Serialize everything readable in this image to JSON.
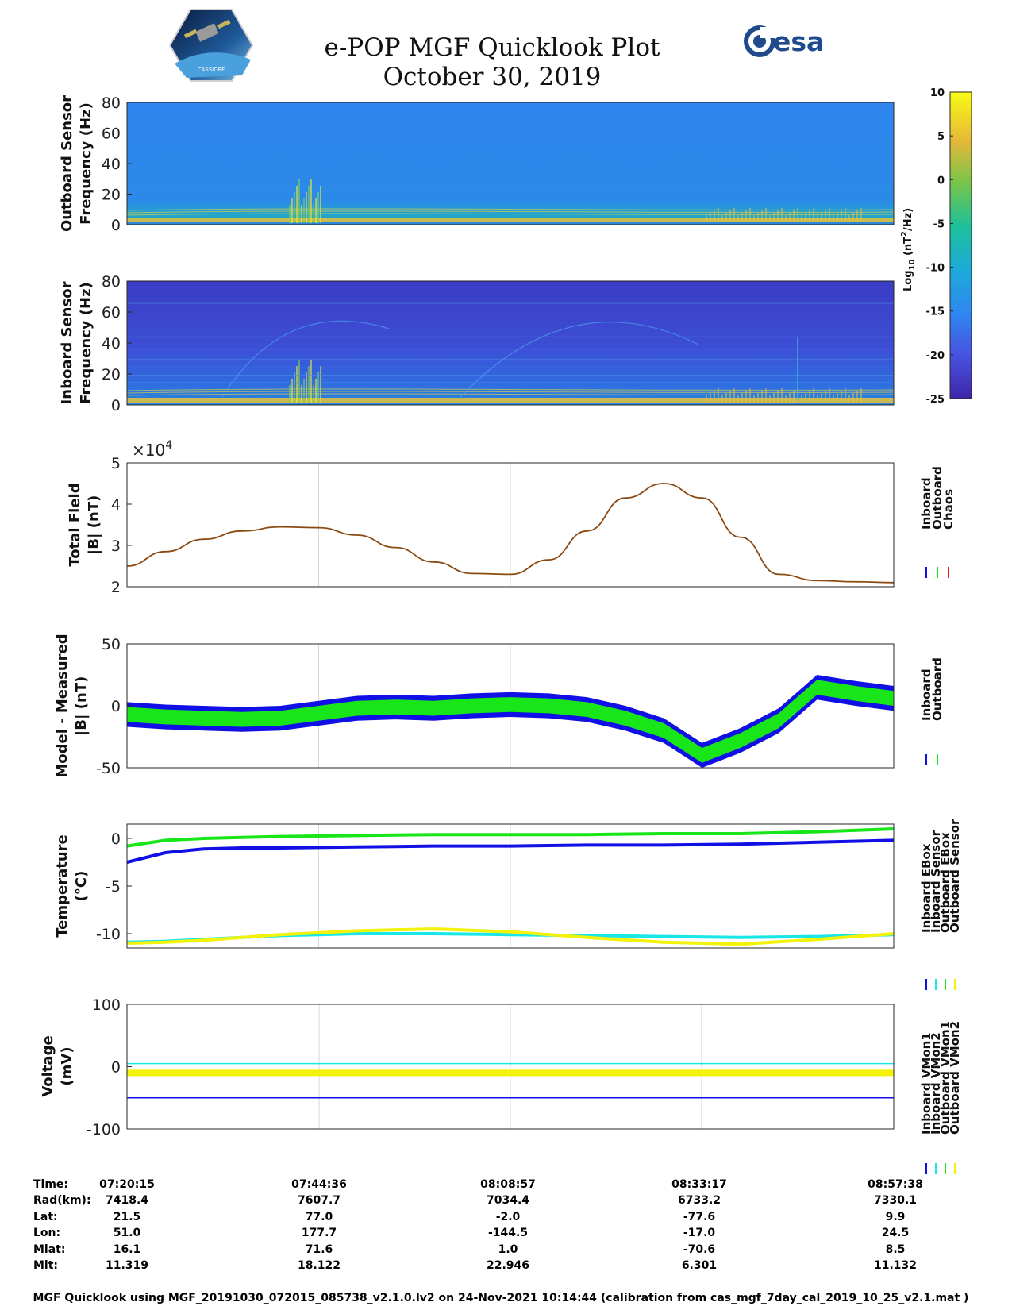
{
  "header": {
    "title": "e-POP MGF Quicklook Plot",
    "date": "October 30, 2019",
    "left_logo_text": "CASSIOPE",
    "right_logo_text": "esa"
  },
  "colors": {
    "inboard": "#1010e6",
    "outboard": "#19e619",
    "chaos": "#e61919",
    "ebox_cyan": "#19e6e6",
    "yellow": "#f2f20a",
    "chaos_line": "#8a4a12"
  },
  "chart_data": [
    {
      "id": "outboard_spectrogram",
      "type": "heatmap",
      "ylabel": [
        "Outboard Sensor",
        "Frequency (Hz)"
      ],
      "ylim": [
        0,
        80
      ],
      "yticks": [
        "80",
        "60",
        "40",
        "20",
        "0"
      ]
    },
    {
      "id": "inboard_spectrogram",
      "type": "heatmap",
      "ylabel": [
        "Inboard Sensor",
        "Frequency (Hz)"
      ],
      "ylim": [
        0,
        80
      ],
      "yticks": [
        "80",
        "60",
        "40",
        "20",
        "0"
      ]
    },
    {
      "id": "colorbar",
      "type": "heatmap",
      "label": "Log10 (nT2/Hz)",
      "label_parts": {
        "pre": "Log",
        "sub": "10",
        "mid": " (nT",
        "sup": "2",
        "post": "/Hz)"
      },
      "range": [
        -25,
        10
      ],
      "ticks": [
        "10",
        "5",
        "0",
        "-5",
        "-10",
        "-15",
        "-20",
        "-25"
      ]
    },
    {
      "id": "total_field",
      "type": "line",
      "ylabel": [
        "Total Field",
        "|B| (nT)"
      ],
      "ylim": [
        2,
        5
      ],
      "yticks": [
        "5",
        "4",
        "3",
        "2"
      ],
      "exponent_label": "×10",
      "exponent": "4",
      "legend": [
        "Inboard",
        "Outboard",
        "Chaos"
      ],
      "x": [
        0,
        0.05,
        0.1,
        0.15,
        0.2,
        0.25,
        0.3,
        0.35,
        0.4,
        0.45,
        0.5,
        0.55,
        0.6,
        0.65,
        0.7,
        0.75,
        0.8,
        0.85,
        0.9,
        0.95,
        1.0
      ],
      "y": [
        2.5,
        2.85,
        3.15,
        3.35,
        3.45,
        3.43,
        3.25,
        2.95,
        2.6,
        2.32,
        2.3,
        2.65,
        3.35,
        4.15,
        4.5,
        4.15,
        3.2,
        2.3,
        2.15,
        2.12,
        2.1
      ]
    },
    {
      "id": "model_minus_measured",
      "type": "area",
      "ylabel": [
        "Model - Measured",
        "|B| (nT)"
      ],
      "ylim": [
        -50,
        50
      ],
      "yticks": [
        "50",
        "0",
        "-50"
      ],
      "legend": [
        "Inboard",
        "Outboard"
      ],
      "x": [
        0,
        0.05,
        0.1,
        0.15,
        0.2,
        0.25,
        0.3,
        0.35,
        0.4,
        0.45,
        0.5,
        0.55,
        0.6,
        0.65,
        0.7,
        0.75,
        0.8,
        0.85,
        0.9,
        0.95,
        1.0
      ],
      "center": [
        -7,
        -9,
        -10,
        -11,
        -10,
        -6,
        -2,
        -1,
        -2,
        0,
        1,
        0,
        -3,
        -10,
        -20,
        -40,
        -28,
        -12,
        15,
        10,
        6
      ],
      "inboard_halfwidth": 10,
      "outboard_halfwidth": 6
    },
    {
      "id": "temperature",
      "type": "line",
      "ylabel": [
        "Temperature",
        "(°C)"
      ],
      "ylim": [
        -11.5,
        1.5
      ],
      "yticks": [
        "0",
        "-5",
        "-10"
      ],
      "legend": [
        "Inboard EBox",
        "Inboard Sensor",
        "Outboard EBox",
        "Outboard Sensor"
      ],
      "x": [
        0,
        0.05,
        0.1,
        0.15,
        0.2,
        0.3,
        0.4,
        0.5,
        0.6,
        0.7,
        0.8,
        0.9,
        1.0
      ],
      "series": [
        {
          "name": "Inboard EBox",
          "values": [
            -2.5,
            -1.5,
            -1.1,
            -1.0,
            -1.0,
            -0.9,
            -0.8,
            -0.8,
            -0.7,
            -0.7,
            -0.6,
            -0.4,
            -0.2
          ]
        },
        {
          "name": "Inboard Sensor",
          "values": [
            -10.9,
            -10.8,
            -10.6,
            -10.4,
            -10.2,
            -10.0,
            -10.0,
            -10.1,
            -10.2,
            -10.3,
            -10.4,
            -10.3,
            -10.1
          ]
        },
        {
          "name": "Outboard EBox",
          "values": [
            -0.8,
            -0.2,
            0.0,
            0.1,
            0.2,
            0.3,
            0.4,
            0.4,
            0.4,
            0.5,
            0.5,
            0.7,
            1.0
          ]
        },
        {
          "name": "Outboard Sensor",
          "values": [
            -11.0,
            -10.9,
            -10.7,
            -10.4,
            -10.1,
            -9.7,
            -9.5,
            -9.8,
            -10.4,
            -10.9,
            -11.1,
            -10.6,
            -10.0
          ]
        }
      ]
    },
    {
      "id": "voltage",
      "type": "line",
      "ylabel": [
        "Voltage",
        "(mV)"
      ],
      "ylim": [
        -100,
        100
      ],
      "yticks": [
        "100",
        "0",
        "-100"
      ],
      "legend": [
        "Inboard VMon1",
        "Inboard VMon2",
        "Outboard VMon1",
        "Outboard VMon2"
      ],
      "series": [
        {
          "name": "Inboard VMon1",
          "level": -50
        },
        {
          "name": "Inboard VMon2",
          "level": 5
        },
        {
          "name": "Outboard VMon1",
          "level": -10
        },
        {
          "name": "Outboard VMon2",
          "level": -10
        }
      ]
    }
  ],
  "ephemeris": {
    "labels": [
      "Time:",
      "Rad(km):",
      "Lat:",
      "Lon:",
      "Mlat:",
      "Mlt:"
    ],
    "columns": [
      [
        "07:20:15",
        "7418.4",
        "21.5",
        "51.0",
        "16.1",
        "11.319"
      ],
      [
        "07:44:36",
        "7607.7",
        "77.0",
        "177.7",
        "71.6",
        "18.122"
      ],
      [
        "08:08:57",
        "7034.4",
        "-2.0",
        "-144.5",
        "1.0",
        "22.946"
      ],
      [
        "08:33:17",
        "6733.2",
        "-77.6",
        "-17.0",
        "-70.6",
        "6.301"
      ],
      [
        "08:57:38",
        "7330.1",
        "9.9",
        "24.5",
        "8.5",
        "11.132"
      ]
    ]
  },
  "footer": "MGF Quicklook using MGF_20191030_072015_085738_v2.1.0.lv2 on 24-Nov-2021 10:14:44 (calibration from cas_mgf_7day_cal_2019_10_25_v2.1.mat )"
}
